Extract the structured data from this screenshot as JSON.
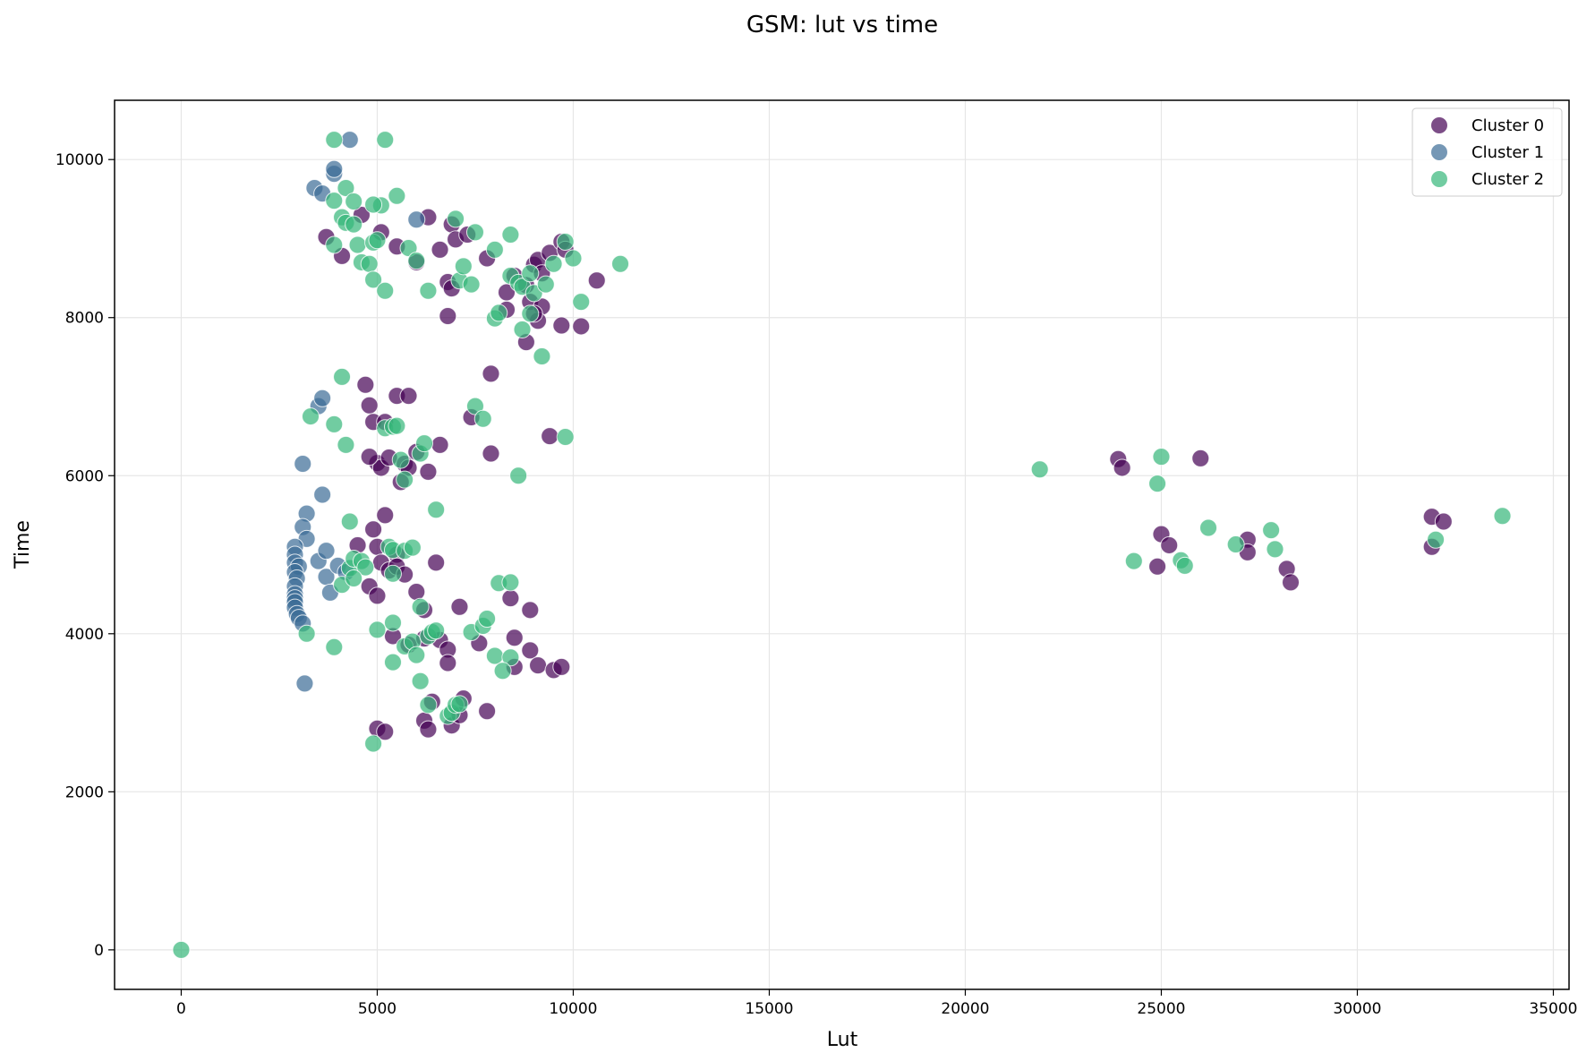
{
  "chart_data": {
    "type": "scatter",
    "title": "GSM: lut vs time",
    "xlabel": "Lut",
    "ylabel": "Time",
    "xlim": [
      -1700,
      35400
    ],
    "ylim": [
      -500,
      10750
    ],
    "xticks": [
      0,
      5000,
      10000,
      15000,
      20000,
      25000,
      30000,
      35000
    ],
    "yticks": [
      0,
      2000,
      4000,
      6000,
      8000,
      10000
    ],
    "grid": true,
    "legend_position": "top-right",
    "series": [
      {
        "name": "Cluster 0",
        "color": "#440154",
        "points": [
          [
            3700,
            9020
          ],
          [
            4100,
            8780
          ],
          [
            4600,
            9300
          ],
          [
            5100,
            9080
          ],
          [
            5500,
            8900
          ],
          [
            6000,
            8700
          ],
          [
            6300,
            9270
          ],
          [
            6600,
            8860
          ],
          [
            6900,
            9180
          ],
          [
            7000,
            8990
          ],
          [
            7300,
            9050
          ],
          [
            7800,
            8750
          ],
          [
            6800,
            8450
          ],
          [
            6900,
            8370
          ],
          [
            8300,
            8320
          ],
          [
            8300,
            8100
          ],
          [
            8500,
            8530
          ],
          [
            8800,
            8410
          ],
          [
            8900,
            8200
          ],
          [
            9000,
            8670
          ],
          [
            9100,
            8730
          ],
          [
            9200,
            8560
          ],
          [
            9200,
            8140
          ],
          [
            9400,
            8820
          ],
          [
            9700,
            8960
          ],
          [
            9800,
            8860
          ],
          [
            10600,
            8470
          ],
          [
            9100,
            7960
          ],
          [
            9700,
            7900
          ],
          [
            10200,
            7890
          ],
          [
            8800,
            7690
          ],
          [
            6800,
            8020
          ],
          [
            9000,
            8050
          ],
          [
            4700,
            7150
          ],
          [
            4800,
            6890
          ],
          [
            4900,
            6680
          ],
          [
            5200,
            6680
          ],
          [
            5500,
            7010
          ],
          [
            5800,
            7010
          ],
          [
            7900,
            7290
          ],
          [
            7400,
            6740
          ],
          [
            5000,
            6160
          ],
          [
            5100,
            6100
          ],
          [
            5300,
            6230
          ],
          [
            5700,
            6150
          ],
          [
            5800,
            6100
          ],
          [
            6000,
            6300
          ],
          [
            6300,
            6050
          ],
          [
            6600,
            6390
          ],
          [
            4800,
            6240
          ],
          [
            5600,
            5920
          ],
          [
            7900,
            6280
          ],
          [
            9400,
            6500
          ],
          [
            4500,
            5120
          ],
          [
            4900,
            5320
          ],
          [
            5000,
            5100
          ],
          [
            5200,
            5500
          ],
          [
            5500,
            5000
          ],
          [
            5100,
            4900
          ],
          [
            5300,
            4800
          ],
          [
            5500,
            4850
          ],
          [
            5700,
            4750
          ],
          [
            6000,
            4530
          ],
          [
            6200,
            4300
          ],
          [
            6500,
            4900
          ],
          [
            4800,
            4600
          ],
          [
            5000,
            4480
          ],
          [
            5400,
            3970
          ],
          [
            5800,
            3860
          ],
          [
            6200,
            3940
          ],
          [
            6600,
            3920
          ],
          [
            6800,
            3800
          ],
          [
            6800,
            3630
          ],
          [
            7100,
            4340
          ],
          [
            7600,
            3880
          ],
          [
            8400,
            4450
          ],
          [
            8500,
            3950
          ],
          [
            8500,
            3580
          ],
          [
            8900,
            4300
          ],
          [
            8900,
            3790
          ],
          [
            9100,
            3600
          ],
          [
            9500,
            3540
          ],
          [
            9700,
            3580
          ],
          [
            7800,
            3020
          ],
          [
            6400,
            3140
          ],
          [
            6200,
            2900
          ],
          [
            6300,
            2790
          ],
          [
            6900,
            2840
          ],
          [
            7100,
            2970
          ],
          [
            7200,
            3180
          ],
          [
            5000,
            2800
          ],
          [
            5200,
            2760
          ],
          [
            23900,
            6210
          ],
          [
            24000,
            6100
          ],
          [
            26000,
            6220
          ],
          [
            25000,
            5260
          ],
          [
            25200,
            5120
          ],
          [
            24900,
            4850
          ],
          [
            27200,
            5190
          ],
          [
            27200,
            5030
          ],
          [
            28200,
            4820
          ],
          [
            28300,
            4650
          ],
          [
            31900,
            5480
          ],
          [
            31900,
            5100
          ],
          [
            32200,
            5420
          ]
        ]
      },
      {
        "name": "Cluster 1",
        "color": "#3b6b95",
        "points": [
          [
            3400,
            9640
          ],
          [
            3600,
            9570
          ],
          [
            3900,
            9820
          ],
          [
            3900,
            9880
          ],
          [
            4300,
            10250
          ],
          [
            6000,
            9240
          ],
          [
            3500,
            6880
          ],
          [
            3600,
            6980
          ],
          [
            3100,
            6150
          ],
          [
            3600,
            5760
          ],
          [
            3200,
            5520
          ],
          [
            3100,
            5350
          ],
          [
            3200,
            5200
          ],
          [
            2900,
            5100
          ],
          [
            2900,
            5000
          ],
          [
            2900,
            4900
          ],
          [
            3000,
            4850
          ],
          [
            2900,
            4780
          ],
          [
            2950,
            4700
          ],
          [
            2900,
            4600
          ],
          [
            2900,
            4500
          ],
          [
            2900,
            4450
          ],
          [
            2900,
            4400
          ],
          [
            2900,
            4330
          ],
          [
            2950,
            4250
          ],
          [
            3000,
            4200
          ],
          [
            3100,
            4130
          ],
          [
            3500,
            4920
          ],
          [
            3700,
            5050
          ],
          [
            3700,
            4720
          ],
          [
            3800,
            4520
          ],
          [
            4000,
            4860
          ],
          [
            4200,
            4780
          ],
          [
            3150,
            3370
          ]
        ]
      },
      {
        "name": "Cluster 2",
        "color": "#35b779",
        "points": [
          [
            3900,
            10250
          ],
          [
            5200,
            10250
          ],
          [
            4200,
            9640
          ],
          [
            3900,
            9480
          ],
          [
            4400,
            9470
          ],
          [
            5100,
            9420
          ],
          [
            4900,
            9430
          ],
          [
            5500,
            9540
          ],
          [
            4100,
            9270
          ],
          [
            4200,
            9200
          ],
          [
            4400,
            9180
          ],
          [
            7000,
            9250
          ],
          [
            7500,
            9080
          ],
          [
            8400,
            9050
          ],
          [
            3900,
            8920
          ],
          [
            4500,
            8920
          ],
          [
            4900,
            8950
          ],
          [
            5000,
            8980
          ],
          [
            5800,
            8880
          ],
          [
            6000,
            8720
          ],
          [
            4600,
            8700
          ],
          [
            4800,
            8680
          ],
          [
            4900,
            8480
          ],
          [
            5200,
            8340
          ],
          [
            6300,
            8340
          ],
          [
            7100,
            8470
          ],
          [
            7200,
            8650
          ],
          [
            7400,
            8420
          ],
          [
            8000,
            8860
          ],
          [
            8400,
            8530
          ],
          [
            8600,
            8440
          ],
          [
            8700,
            8390
          ],
          [
            8900,
            8560
          ],
          [
            9000,
            8310
          ],
          [
            9300,
            8420
          ],
          [
            9500,
            8680
          ],
          [
            9800,
            8960
          ],
          [
            10000,
            8750
          ],
          [
            11200,
            8680
          ],
          [
            8000,
            7990
          ],
          [
            8100,
            8060
          ],
          [
            8700,
            7850
          ],
          [
            8900,
            8050
          ],
          [
            9200,
            7510
          ],
          [
            10200,
            8200
          ],
          [
            4100,
            7250
          ],
          [
            3300,
            6750
          ],
          [
            3900,
            6650
          ],
          [
            4200,
            6390
          ],
          [
            5200,
            6600
          ],
          [
            5400,
            6620
          ],
          [
            5500,
            6630
          ],
          [
            6100,
            6280
          ],
          [
            6200,
            6410
          ],
          [
            7500,
            6880
          ],
          [
            7700,
            6720
          ],
          [
            9800,
            6490
          ],
          [
            5600,
            6200
          ],
          [
            5700,
            5950
          ],
          [
            8600,
            6000
          ],
          [
            6500,
            5570
          ],
          [
            4300,
            5420
          ],
          [
            4300,
            4830
          ],
          [
            4400,
            4950
          ],
          [
            4600,
            4920
          ],
          [
            4700,
            4840
          ],
          [
            5300,
            5100
          ],
          [
            5400,
            5060
          ],
          [
            5700,
            5050
          ],
          [
            5900,
            5090
          ],
          [
            5400,
            4760
          ],
          [
            4100,
            4620
          ],
          [
            4400,
            4700
          ],
          [
            3200,
            4000
          ],
          [
            3900,
            3830
          ],
          [
            5000,
            4050
          ],
          [
            5400,
            4140
          ],
          [
            5700,
            3840
          ],
          [
            5900,
            3900
          ],
          [
            6000,
            3730
          ],
          [
            6100,
            4340
          ],
          [
            6300,
            3970
          ],
          [
            6400,
            4020
          ],
          [
            6500,
            4040
          ],
          [
            7400,
            4020
          ],
          [
            7700,
            4100
          ],
          [
            7800,
            4190
          ],
          [
            8100,
            4640
          ],
          [
            8400,
            4650
          ],
          [
            8000,
            3720
          ],
          [
            8400,
            3700
          ],
          [
            8200,
            3530
          ],
          [
            5400,
            3640
          ],
          [
            6100,
            3400
          ],
          [
            6300,
            3100
          ],
          [
            6800,
            2960
          ],
          [
            6900,
            3000
          ],
          [
            7000,
            3100
          ],
          [
            7100,
            3110
          ],
          [
            4900,
            2610
          ],
          [
            21900,
            6080
          ],
          [
            25000,
            6240
          ],
          [
            24900,
            5900
          ],
          [
            26200,
            5340
          ],
          [
            26900,
            5130
          ],
          [
            27800,
            5310
          ],
          [
            27900,
            5070
          ],
          [
            24300,
            4920
          ],
          [
            25500,
            4930
          ],
          [
            25600,
            4860
          ],
          [
            32000,
            5190
          ],
          [
            33700,
            5490
          ],
          [
            0,
            0
          ]
        ]
      }
    ]
  }
}
